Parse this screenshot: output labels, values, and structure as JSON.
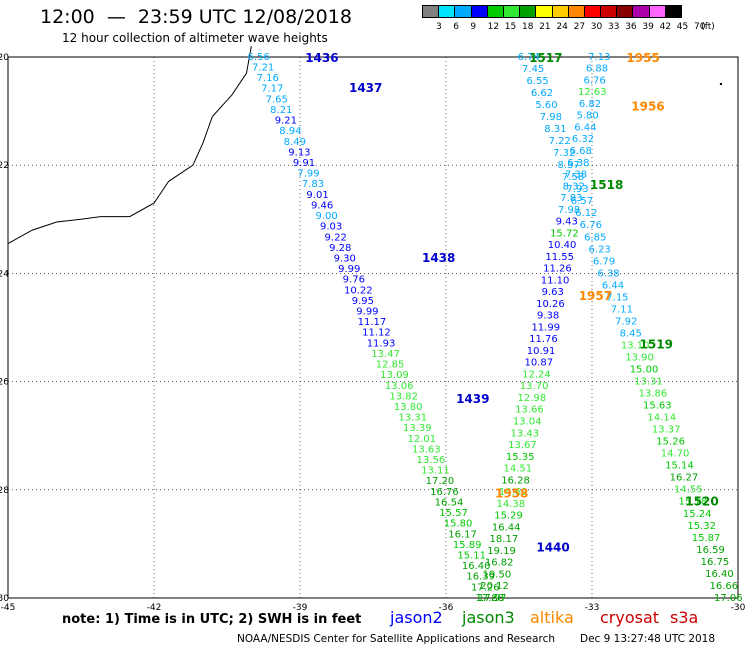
{
  "header": {
    "title": "12:00  —  23:59 UTC 12/08/2018",
    "subtitle": "12 hour collection of altimeter wave heights"
  },
  "legend": {
    "unit": "(ft)",
    "ticks": [
      "3",
      "6",
      "9",
      "12",
      "15",
      "18",
      "21",
      "24",
      "27",
      "30",
      "33",
      "36",
      "39",
      "42",
      "45",
      "70"
    ],
    "colors": [
      "#808080",
      "#00e5ff",
      "#00aaff",
      "#0000ff",
      "#00cc00",
      "#33e833",
      "#00a000",
      "#ffff00",
      "#ffcc00",
      "#ff8800",
      "#ff0000",
      "#cc0000",
      "#880000",
      "#aa00aa",
      "#ff66ff",
      "#000000"
    ]
  },
  "map": {
    "xlim": [
      -45,
      -30
    ],
    "ylim": [
      -30,
      -20
    ],
    "x_ticks": [
      "-45",
      "-42",
      "-39",
      "-36",
      "-33",
      "-30"
    ],
    "y_ticks": [
      "-20",
      "-22",
      "-24",
      "-26",
      "-28",
      "-30"
    ],
    "passes": [
      {
        "label": "1436",
        "sat": "jason2",
        "lon": -38.55,
        "lat": -20.0
      },
      {
        "label": "1437",
        "sat": "jason2",
        "lon": -37.65,
        "lat": -20.55
      },
      {
        "label": "1438",
        "sat": "jason2",
        "lon": -36.15,
        "lat": -23.7
      },
      {
        "label": "1439",
        "sat": "jason2",
        "lon": -35.45,
        "lat": -26.3
      },
      {
        "label": "1440",
        "sat": "jason2",
        "lon": -33.8,
        "lat": -29.05
      },
      {
        "label": "1517",
        "sat": "jason3",
        "lon": -33.95,
        "lat": -20.0
      },
      {
        "label": "1518",
        "sat": "jason3",
        "lon": -32.7,
        "lat": -22.35
      },
      {
        "label": "1519",
        "sat": "jason3",
        "lon": -31.68,
        "lat": -25.3
      },
      {
        "label": "1520",
        "sat": "jason3",
        "lon": -30.74,
        "lat": -28.2
      },
      {
        "label": "1955",
        "sat": "altika",
        "lon": -31.95,
        "lat": -20.0
      },
      {
        "label": "1956",
        "sat": "altika",
        "lon": -31.85,
        "lat": -20.9
      },
      {
        "label": "1957",
        "sat": "altika",
        "lon": -32.93,
        "lat": -24.4
      },
      {
        "label": "1958",
        "sat": "altika",
        "lon": -34.65,
        "lat": -28.05
      }
    ],
    "tracks": [
      {
        "sat": "jason2",
        "start": [
          -39.85,
          -19.98
        ],
        "end": [
          -35.1,
          -29.98
        ],
        "values": [
          [
            "6.56",
            "#00aaff"
          ],
          [
            "7.21",
            "#00aaff"
          ],
          [
            "7.16",
            "#00aaff"
          ],
          [
            "7.17",
            "#00aaff"
          ],
          [
            "7.65",
            "#00aaff"
          ],
          [
            "8.21",
            "#00aaff"
          ],
          [
            "9.21",
            "#0000ff"
          ],
          [
            "8.94",
            "#00aaff"
          ],
          [
            "8.49",
            "#00aaff"
          ],
          [
            "9.13",
            "#0000ff"
          ],
          [
            "9.91",
            "#0000ff"
          ],
          [
            "7.99",
            "#00aaff"
          ],
          [
            "7.83",
            "#00aaff"
          ],
          [
            "9.01",
            "#0000ff"
          ],
          [
            "9.46",
            "#0000ff"
          ],
          [
            "9.00",
            "#00aaff"
          ],
          [
            "9.03",
            "#0000ff"
          ],
          [
            "9.22",
            "#0000ff"
          ],
          [
            "9.28",
            "#0000ff"
          ],
          [
            "9.30",
            "#0000ff"
          ],
          [
            "9.99",
            "#0000ff"
          ],
          [
            "9.76",
            "#0000ff"
          ],
          [
            "10.22",
            "#0000ff"
          ],
          [
            "9.95",
            "#0000ff"
          ],
          [
            "9.99",
            "#0000ff"
          ],
          [
            "11.17",
            "#0000ff"
          ],
          [
            "11.12",
            "#0000ff"
          ],
          [
            "11.93",
            "#0000ff"
          ],
          [
            "13.47",
            "#33e833"
          ],
          [
            "12.85",
            "#33e833"
          ],
          [
            "13.09",
            "#33e833"
          ],
          [
            "13.06",
            "#33e833"
          ],
          [
            "13.82",
            "#33e833"
          ],
          [
            "13.80",
            "#33e833"
          ],
          [
            "13.31",
            "#33e833"
          ],
          [
            "13.39",
            "#33e833"
          ],
          [
            "12.01",
            "#33e833"
          ],
          [
            "13.63",
            "#33e833"
          ],
          [
            "13.56",
            "#33e833"
          ],
          [
            "13.11",
            "#33e833"
          ],
          [
            "17.20",
            "#00a000"
          ],
          [
            "16.76",
            "#00a000"
          ],
          [
            "16.54",
            "#00a000"
          ],
          [
            "15.57",
            "#00cc00"
          ],
          [
            "15.80",
            "#00cc00"
          ],
          [
            "16.17",
            "#00a000"
          ],
          [
            "15.89",
            "#00cc00"
          ],
          [
            "15.11",
            "#00cc00"
          ],
          [
            "16.40",
            "#00a000"
          ],
          [
            "16.39",
            "#00a000"
          ],
          [
            "17.26",
            "#00a000"
          ],
          [
            "17.88",
            "#00a000"
          ]
        ]
      },
      {
        "sat": "jason3",
        "start": [
          -34.3,
          -19.98
        ],
        "end": [
          -30.2,
          -29.98
        ],
        "values": [
          [
            "6.74",
            "#00aaff"
          ],
          [
            "7.45",
            "#00aaff"
          ],
          [
            "6.55",
            "#00aaff"
          ],
          [
            "6.62",
            "#00aaff"
          ],
          [
            "5.60",
            "#00aaff"
          ],
          [
            "7.98",
            "#00aaff"
          ],
          [
            "8.31",
            "#00aaff"
          ],
          [
            "7.22",
            "#00aaff"
          ],
          [
            "7.32",
            "#00aaff"
          ],
          [
            "8.37",
            "#00aaff"
          ],
          [
            "7.58",
            "#00aaff"
          ],
          [
            "7.93",
            "#00aaff"
          ],
          [
            "6.57",
            "#00aaff"
          ],
          [
            "6.12",
            "#00aaff"
          ],
          [
            "6.76",
            "#00aaff"
          ],
          [
            "6.85",
            "#00aaff"
          ],
          [
            "6.23",
            "#00aaff"
          ],
          [
            "6.79",
            "#00aaff"
          ],
          [
            "6.38",
            "#00aaff"
          ],
          [
            "6.44",
            "#00aaff"
          ],
          [
            "7.15",
            "#00aaff"
          ],
          [
            "7.11",
            "#00aaff"
          ],
          [
            "7.92",
            "#00aaff"
          ],
          [
            "8.45",
            "#00aaff"
          ],
          [
            "13.10",
            "#33e833"
          ],
          [
            "13.90",
            "#33e833"
          ],
          [
            "15.00",
            "#00cc00"
          ],
          [
            "13.31",
            "#33e833"
          ],
          [
            "13.86",
            "#33e833"
          ],
          [
            "15.63",
            "#00cc00"
          ],
          [
            "14.14",
            "#33e833"
          ],
          [
            "13.37",
            "#33e833"
          ],
          [
            "15.26",
            "#00cc00"
          ],
          [
            "14.70",
            "#33e833"
          ],
          [
            "15.14",
            "#00cc00"
          ],
          [
            "16.27",
            "#00a000"
          ],
          [
            "14.55",
            "#33e833"
          ],
          [
            "15.18",
            "#00cc00"
          ],
          [
            "15.24",
            "#00cc00"
          ],
          [
            "15.32",
            "#00cc00"
          ],
          [
            "15.87",
            "#00cc00"
          ],
          [
            "16.59",
            "#00a000"
          ],
          [
            "16.75",
            "#00a000"
          ],
          [
            "16.40",
            "#00a000"
          ],
          [
            "16.66",
            "#00a000"
          ],
          [
            "17.06",
            "#00a000"
          ]
        ]
      },
      {
        "sat": "altika",
        "start": [
          -32.85,
          -19.98
        ],
        "end": [
          -35.05,
          -29.98
        ],
        "values": [
          [
            "7.13",
            "#00aaff"
          ],
          [
            "6.88",
            "#00aaff"
          ],
          [
            "6.76",
            "#00aaff"
          ],
          [
            "12.63",
            "#33e833"
          ],
          [
            "6.82",
            "#00aaff"
          ],
          [
            "5.80",
            "#00aaff"
          ],
          [
            "6.44",
            "#00aaff"
          ],
          [
            "6.32",
            "#00aaff"
          ],
          [
            "6.68",
            "#00aaff"
          ],
          [
            "6.38",
            "#00aaff"
          ],
          [
            "7.38",
            "#00aaff"
          ],
          [
            "8.32",
            "#00aaff"
          ],
          [
            "7.83",
            "#00aaff"
          ],
          [
            "7.98",
            "#00aaff"
          ],
          [
            "9.43",
            "#0000ff"
          ],
          [
            "15.72",
            "#00cc00"
          ],
          [
            "10.40",
            "#0000ff"
          ],
          [
            "11.55",
            "#0000ff"
          ],
          [
            "11.26",
            "#0000ff"
          ],
          [
            "11.10",
            "#0000ff"
          ],
          [
            "9.63",
            "#0000ff"
          ],
          [
            "10.26",
            "#0000ff"
          ],
          [
            "9.38",
            "#0000ff"
          ],
          [
            "11.99",
            "#0000ff"
          ],
          [
            "11.76",
            "#0000ff"
          ],
          [
            "10.91",
            "#0000ff"
          ],
          [
            "10.87",
            "#0000ff"
          ],
          [
            "12.24",
            "#33e833"
          ],
          [
            "13.70",
            "#33e833"
          ],
          [
            "12.98",
            "#33e833"
          ],
          [
            "13.66",
            "#33e833"
          ],
          [
            "13.04",
            "#33e833"
          ],
          [
            "13.43",
            "#33e833"
          ],
          [
            "13.67",
            "#33e833"
          ],
          [
            "15.35",
            "#00cc00"
          ],
          [
            "14.51",
            "#33e833"
          ],
          [
            "16.28",
            "#00a000"
          ],
          [
            "14.69",
            "#33e833"
          ],
          [
            "14.38",
            "#33e833"
          ],
          [
            "15.29",
            "#00cc00"
          ],
          [
            "16.44",
            "#00a000"
          ],
          [
            "18.17",
            "#00a000"
          ],
          [
            "19.19",
            "#00a000"
          ],
          [
            "16.82",
            "#00a000"
          ],
          [
            "19.50",
            "#00a000"
          ],
          [
            "20.12",
            "#00a000"
          ],
          [
            "17.97",
            "#00a000"
          ]
        ]
      }
    ]
  },
  "footer": {
    "note": "note:  1) Time is in UTC;  2) SWH is in feet",
    "satellites": [
      {
        "name": "jason2",
        "color": "#0000ff"
      },
      {
        "name": "jason3",
        "color": "#008800"
      },
      {
        "name": "altika",
        "color": "#ff8800"
      },
      {
        "name": "cryosat",
        "color": "#cc0000"
      },
      {
        "name": "s3a",
        "color": "#cc0000"
      }
    ],
    "credit": "NOAA/NESDIS Center for Satellite Applications and Research",
    "timestamp": "Dec  9 13:27:48 UTC 2018"
  }
}
